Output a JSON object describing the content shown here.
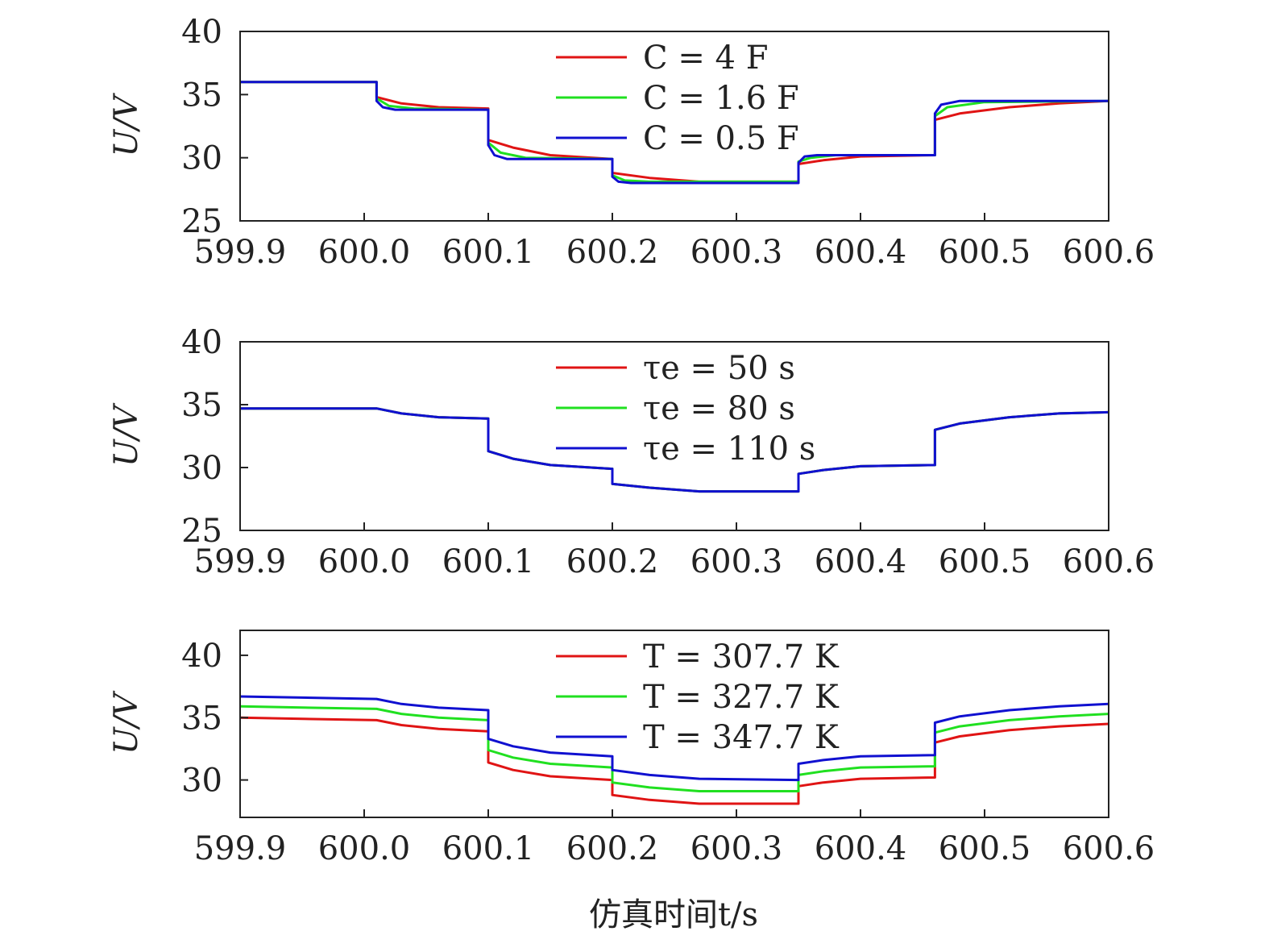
{
  "xlabel": "仿真时间t/s",
  "colors": {
    "red": "#e01414",
    "green": "#20e020",
    "blue": "#1010d0"
  },
  "chart_data": [
    {
      "type": "line",
      "ylabel": "U/V",
      "xlim": [
        599.9,
        600.6
      ],
      "ylim": [
        25,
        40
      ],
      "xticks": [
        "599.9",
        "600.0",
        "600.1",
        "600.2",
        "600.3",
        "600.4",
        "600.5",
        "600.6"
      ],
      "yticks": [
        "25",
        "30",
        "35",
        "40"
      ],
      "legend_position": "top-center",
      "series": [
        {
          "name": "C = 4 F",
          "color": "#e01414",
          "points": [
            [
              599.9,
              36.0
            ],
            [
              600.01,
              36.0
            ],
            [
              600.01,
              34.8
            ],
            [
              600.03,
              34.3
            ],
            [
              600.06,
              34.0
            ],
            [
              600.1,
              33.9
            ],
            [
              600.1,
              31.4
            ],
            [
              600.12,
              30.8
            ],
            [
              600.15,
              30.2
            ],
            [
              600.2,
              29.9
            ],
            [
              600.2,
              28.8
            ],
            [
              600.23,
              28.4
            ],
            [
              600.27,
              28.1
            ],
            [
              600.35,
              28.1
            ],
            [
              600.35,
              29.5
            ],
            [
              600.37,
              29.8
            ],
            [
              600.4,
              30.1
            ],
            [
              600.46,
              30.2
            ],
            [
              600.46,
              33.0
            ],
            [
              600.48,
              33.5
            ],
            [
              600.52,
              34.0
            ],
            [
              600.56,
              34.3
            ],
            [
              600.6,
              34.5
            ]
          ]
        },
        {
          "name": "C = 1.6 F",
          "color": "#20e020",
          "points": [
            [
              599.9,
              36.0
            ],
            [
              600.01,
              36.0
            ],
            [
              600.01,
              34.7
            ],
            [
              600.02,
              34.1
            ],
            [
              600.04,
              33.9
            ],
            [
              600.1,
              33.8
            ],
            [
              600.1,
              31.2
            ],
            [
              600.11,
              30.4
            ],
            [
              600.13,
              30.0
            ],
            [
              600.2,
              29.9
            ],
            [
              600.2,
              28.6
            ],
            [
              600.21,
              28.2
            ],
            [
              600.23,
              28.1
            ],
            [
              600.35,
              28.1
            ],
            [
              600.35,
              29.7
            ],
            [
              600.36,
              30.0
            ],
            [
              600.38,
              30.2
            ],
            [
              600.46,
              30.2
            ],
            [
              600.46,
              33.3
            ],
            [
              600.47,
              34.0
            ],
            [
              600.5,
              34.4
            ],
            [
              600.6,
              34.5
            ]
          ]
        },
        {
          "name": "C = 0.5 F",
          "color": "#1010d0",
          "points": [
            [
              599.9,
              36.0
            ],
            [
              600.01,
              36.0
            ],
            [
              600.01,
              34.5
            ],
            [
              600.015,
              34.0
            ],
            [
              600.025,
              33.8
            ],
            [
              600.1,
              33.8
            ],
            [
              600.1,
              31.0
            ],
            [
              600.105,
              30.2
            ],
            [
              600.115,
              29.9
            ],
            [
              600.2,
              29.9
            ],
            [
              600.2,
              28.5
            ],
            [
              600.205,
              28.1
            ],
            [
              600.215,
              28.0
            ],
            [
              600.35,
              28.0
            ],
            [
              600.35,
              29.6
            ],
            [
              600.355,
              30.1
            ],
            [
              600.365,
              30.2
            ],
            [
              600.46,
              30.2
            ],
            [
              600.46,
              33.5
            ],
            [
              600.465,
              34.2
            ],
            [
              600.48,
              34.5
            ],
            [
              600.6,
              34.5
            ]
          ]
        }
      ]
    },
    {
      "type": "line",
      "ylabel": "U/V",
      "xlim": [
        599.9,
        600.6
      ],
      "ylim": [
        25,
        40
      ],
      "xticks": [
        "599.9",
        "600.0",
        "600.1",
        "600.2",
        "600.3",
        "600.4",
        "600.5",
        "600.6"
      ],
      "yticks": [
        "25",
        "30",
        "35",
        "40"
      ],
      "legend_position": "top-center",
      "series": [
        {
          "name": "τe = 50 s",
          "color": "#e01414",
          "points": [
            [
              599.9,
              34.7
            ],
            [
              600.01,
              34.7
            ],
            [
              600.03,
              34.3
            ],
            [
              600.06,
              34.0
            ],
            [
              600.1,
              33.9
            ],
            [
              600.1,
              31.3
            ],
            [
              600.12,
              30.7
            ],
            [
              600.15,
              30.2
            ],
            [
              600.2,
              29.9
            ],
            [
              600.2,
              28.7
            ],
            [
              600.23,
              28.4
            ],
            [
              600.27,
              28.1
            ],
            [
              600.35,
              28.1
            ],
            [
              600.35,
              29.5
            ],
            [
              600.37,
              29.8
            ],
            [
              600.4,
              30.1
            ],
            [
              600.46,
              30.2
            ],
            [
              600.46,
              33.0
            ],
            [
              600.48,
              33.5
            ],
            [
              600.52,
              34.0
            ],
            [
              600.56,
              34.3
            ],
            [
              600.6,
              34.4
            ]
          ]
        },
        {
          "name": "τe = 80 s",
          "color": "#20e020",
          "points": [
            [
              599.9,
              34.7
            ],
            [
              600.01,
              34.7
            ],
            [
              600.03,
              34.3
            ],
            [
              600.06,
              34.0
            ],
            [
              600.1,
              33.9
            ],
            [
              600.1,
              31.3
            ],
            [
              600.12,
              30.7
            ],
            [
              600.15,
              30.2
            ],
            [
              600.2,
              29.9
            ],
            [
              600.2,
              28.7
            ],
            [
              600.23,
              28.4
            ],
            [
              600.27,
              28.1
            ],
            [
              600.35,
              28.1
            ],
            [
              600.35,
              29.5
            ],
            [
              600.37,
              29.8
            ],
            [
              600.4,
              30.1
            ],
            [
              600.46,
              30.2
            ],
            [
              600.46,
              33.0
            ],
            [
              600.48,
              33.5
            ],
            [
              600.52,
              34.0
            ],
            [
              600.56,
              34.3
            ],
            [
              600.6,
              34.4
            ]
          ]
        },
        {
          "name": "τe = 110 s",
          "color": "#1010d0",
          "points": [
            [
              599.9,
              34.7
            ],
            [
              600.01,
              34.7
            ],
            [
              600.03,
              34.3
            ],
            [
              600.06,
              34.0
            ],
            [
              600.1,
              33.9
            ],
            [
              600.1,
              31.3
            ],
            [
              600.12,
              30.7
            ],
            [
              600.15,
              30.2
            ],
            [
              600.2,
              29.9
            ],
            [
              600.2,
              28.7
            ],
            [
              600.23,
              28.4
            ],
            [
              600.27,
              28.1
            ],
            [
              600.35,
              28.1
            ],
            [
              600.35,
              29.5
            ],
            [
              600.37,
              29.8
            ],
            [
              600.4,
              30.1
            ],
            [
              600.46,
              30.2
            ],
            [
              600.46,
              33.0
            ],
            [
              600.48,
              33.5
            ],
            [
              600.52,
              34.0
            ],
            [
              600.56,
              34.3
            ],
            [
              600.6,
              34.4
            ]
          ]
        }
      ]
    },
    {
      "type": "line",
      "ylabel": "U/V",
      "xlim": [
        599.9,
        600.6
      ],
      "ylim": [
        27,
        42
      ],
      "xticks": [
        "599.9",
        "600.0",
        "600.1",
        "600.2",
        "600.3",
        "600.4",
        "600.5",
        "600.6"
      ],
      "yticks": [
        "30",
        "35",
        "40"
      ],
      "legend_position": "top-center",
      "series": [
        {
          "name": "T = 307.7 K",
          "color": "#e01414",
          "points": [
            [
              599.9,
              35.0
            ],
            [
              600.01,
              34.8
            ],
            [
              600.03,
              34.4
            ],
            [
              600.06,
              34.1
            ],
            [
              600.1,
              33.9
            ],
            [
              600.1,
              31.4
            ],
            [
              600.12,
              30.8
            ],
            [
              600.15,
              30.3
            ],
            [
              600.2,
              30.0
            ],
            [
              600.2,
              28.8
            ],
            [
              600.23,
              28.4
            ],
            [
              600.27,
              28.1
            ],
            [
              600.35,
              28.1
            ],
            [
              600.35,
              29.5
            ],
            [
              600.37,
              29.8
            ],
            [
              600.4,
              30.1
            ],
            [
              600.46,
              30.2
            ],
            [
              600.46,
              33.0
            ],
            [
              600.48,
              33.5
            ],
            [
              600.52,
              34.0
            ],
            [
              600.56,
              34.3
            ],
            [
              600.6,
              34.5
            ]
          ]
        },
        {
          "name": "T = 327.7 K",
          "color": "#20e020",
          "points": [
            [
              599.9,
              35.9
            ],
            [
              600.01,
              35.7
            ],
            [
              600.03,
              35.3
            ],
            [
              600.06,
              35.0
            ],
            [
              600.1,
              34.8
            ],
            [
              600.1,
              32.4
            ],
            [
              600.12,
              31.8
            ],
            [
              600.15,
              31.3
            ],
            [
              600.2,
              31.0
            ],
            [
              600.2,
              29.8
            ],
            [
              600.23,
              29.4
            ],
            [
              600.27,
              29.1
            ],
            [
              600.35,
              29.1
            ],
            [
              600.35,
              30.4
            ],
            [
              600.37,
              30.7
            ],
            [
              600.4,
              31.0
            ],
            [
              600.46,
              31.1
            ],
            [
              600.46,
              33.8
            ],
            [
              600.48,
              34.3
            ],
            [
              600.52,
              34.8
            ],
            [
              600.56,
              35.1
            ],
            [
              600.6,
              35.3
            ]
          ]
        },
        {
          "name": "T = 347.7 K",
          "color": "#1010d0",
          "points": [
            [
              599.9,
              36.7
            ],
            [
              600.01,
              36.5
            ],
            [
              600.03,
              36.1
            ],
            [
              600.06,
              35.8
            ],
            [
              600.1,
              35.6
            ],
            [
              600.1,
              33.3
            ],
            [
              600.12,
              32.7
            ],
            [
              600.15,
              32.2
            ],
            [
              600.2,
              31.9
            ],
            [
              600.2,
              30.8
            ],
            [
              600.23,
              30.4
            ],
            [
              600.27,
              30.1
            ],
            [
              600.35,
              30.0
            ],
            [
              600.35,
              31.3
            ],
            [
              600.37,
              31.6
            ],
            [
              600.4,
              31.9
            ],
            [
              600.46,
              32.0
            ],
            [
              600.46,
              34.6
            ],
            [
              600.48,
              35.1
            ],
            [
              600.52,
              35.6
            ],
            [
              600.56,
              35.9
            ],
            [
              600.6,
              36.1
            ]
          ]
        }
      ]
    }
  ]
}
